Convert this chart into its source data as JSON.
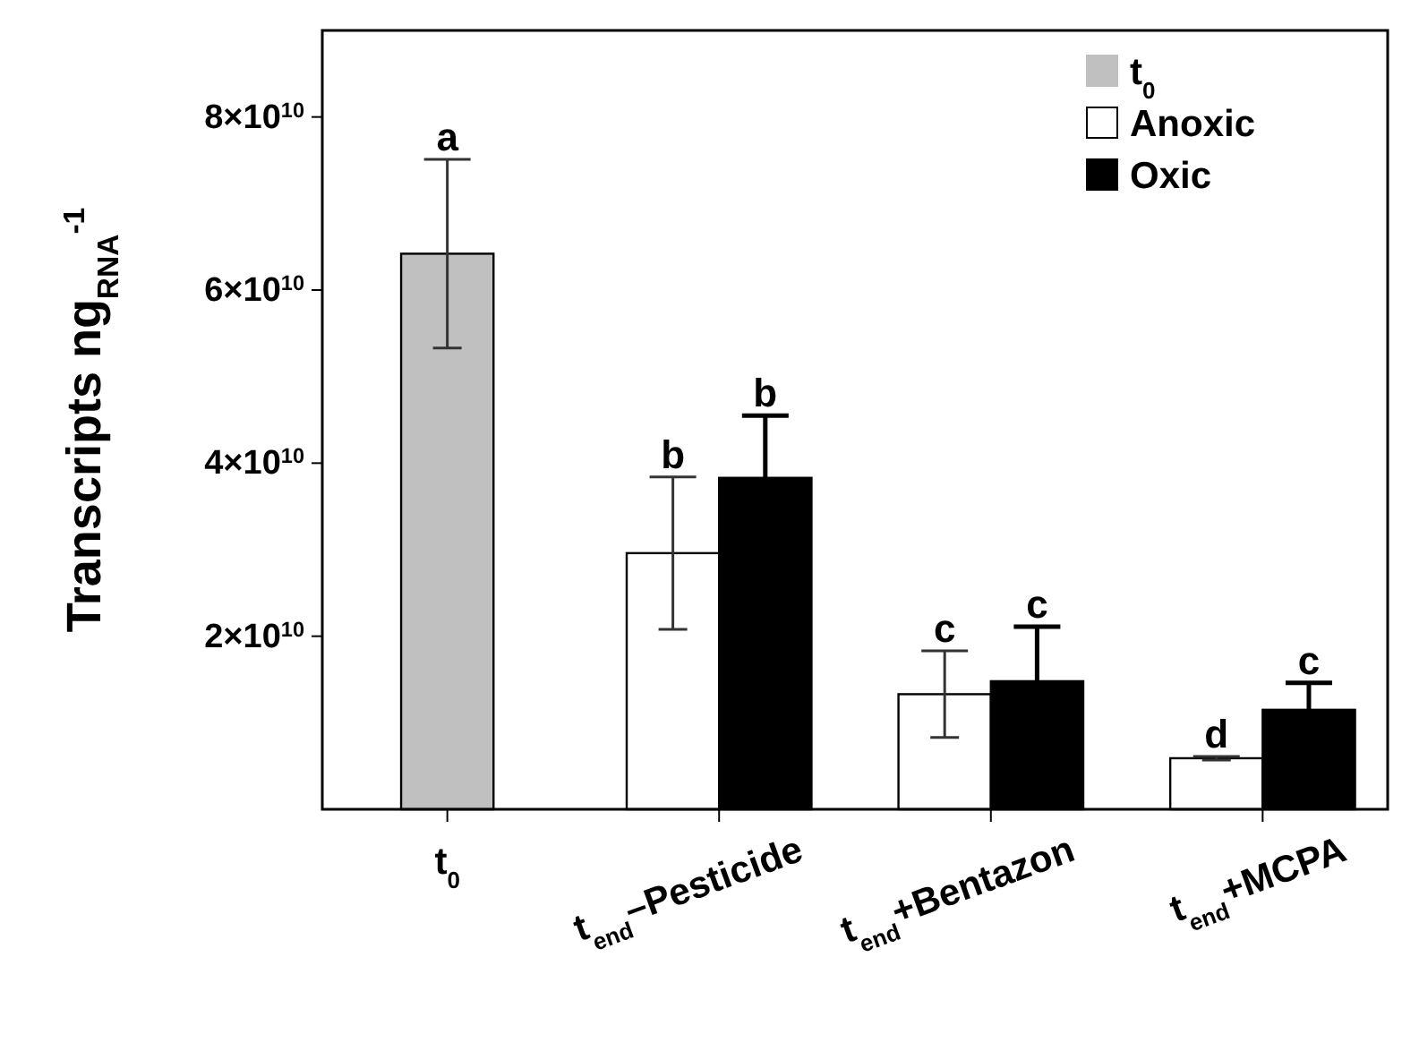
{
  "chart_data": {
    "type": "bar",
    "ylabel": "Transcripts ng$_{RNA}$$^{-1}$",
    "categories": [
      "t$_{0}$",
      "t$_{end}$–Pesticide",
      "t$_{end}$+Bentazon",
      "t$_{end}$+MCPA"
    ],
    "series": [
      {
        "name": "t$_{0}$",
        "color": "#c0c0c0",
        "values": [
          64200000000.0,
          null,
          null,
          null
        ],
        "errors": [
          10900000000.0,
          null,
          null,
          null
        ]
      },
      {
        "name": "Anoxic",
        "color": "#ffffff",
        "values": [
          null,
          29600000000.0,
          13300000000.0,
          5900000000.0
        ],
        "errors": [
          null,
          8800000000.0,
          5000000000.0,
          200000000.0
        ]
      },
      {
        "name": "Oxic",
        "color": "#000000",
        "values": [
          null,
          38300000000.0,
          14800000000.0,
          11500000000.0
        ],
        "errors": [
          null,
          7200000000.0,
          6300000000.0,
          3100000000.0
        ]
      }
    ],
    "ylim": [
      0,
      90000000000.0
    ],
    "yticks": [
      {
        "value": 20000000000.0,
        "label": "2×10$^{10}$"
      },
      {
        "value": 40000000000.0,
        "label": "4×10$^{10}$"
      },
      {
        "value": 60000000000.0,
        "label": "6×10$^{10}$"
      },
      {
        "value": 80000000000.0,
        "label": "8×10$^{10}$"
      }
    ],
    "annotations": [
      "a",
      "b",
      "b",
      "c",
      "c",
      "d",
      "c"
    ],
    "legend": "top right",
    "grid": false
  }
}
